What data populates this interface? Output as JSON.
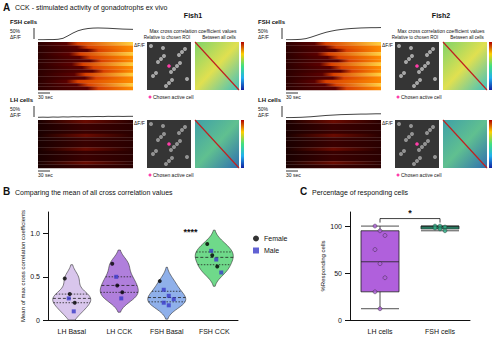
{
  "panel_a": {
    "panel_label": "A",
    "title": "CCK - stimulated activity of gonadotrophs ex vivo",
    "cell_types": [
      "FSH cells",
      "LH cells"
    ],
    "scale_label": [
      "50%",
      "ΔF/F"
    ],
    "colorbar_label": "ΔF/F",
    "time_label": "30 sec",
    "matrix_title": "Max cross correlation coefficient values",
    "matrix_subtitles": [
      "Relative to chosen ROI",
      "Between all cells"
    ],
    "marker_label": "Chosen active cell",
    "trace_ylim": [
      0,
      1
    ],
    "fish": [
      {
        "name": "Fish1",
        "mean_traces": [
          [
            0.02,
            0.02,
            0.03,
            0.03,
            0.05,
            0.12,
            0.3,
            0.5,
            0.66,
            0.76,
            0.82,
            0.85,
            0.86,
            0.85,
            0.84,
            0.82,
            0.8,
            0.78,
            0.77,
            0.76
          ],
          [
            0.05,
            0.06,
            0.05,
            0.07,
            0.06,
            0.08,
            0.07,
            0.09,
            0.08,
            0.1,
            0.09,
            0.1,
            0.11,
            0.1,
            0.12,
            0.11,
            0.12,
            0.11,
            0.12,
            0.12
          ]
        ]
      },
      {
        "name": "Fish2",
        "mean_traces": [
          [
            0.02,
            0.02,
            0.03,
            0.05,
            0.1,
            0.2,
            0.32,
            0.44,
            0.55,
            0.63,
            0.7,
            0.75,
            0.79,
            0.82,
            0.84,
            0.86,
            0.87,
            0.88,
            0.88,
            0.89
          ],
          [
            0.03,
            0.03,
            0.04,
            0.05,
            0.07,
            0.09,
            0.12,
            0.15,
            0.18,
            0.2,
            0.22,
            0.24,
            0.25,
            0.26,
            0.27,
            0.28,
            0.28,
            0.29,
            0.3,
            0.3
          ]
        ]
      }
    ]
  },
  "chart_data": [
    {
      "type": "violin",
      "panel_label": "B",
      "title": "Comparing the mean of all cross correlation values",
      "ylabel": "Mean of max cross correlation coefficients",
      "categories": [
        "LH Basal",
        "LH CCK",
        "FSH Basal",
        "FSH CCK"
      ],
      "colors": [
        "#d9c6ec",
        "#b07fdc",
        "#8fb0ea",
        "#6fd98a"
      ],
      "series": [
        {
          "name": "Female",
          "color": "#000000",
          "marker": "circle",
          "values": [
            [
              0.48,
              0.3,
              0.2
            ],
            [
              0.65,
              0.4,
              0.32
            ],
            [
              0.45
            ],
            [
              0.88,
              0.75,
              0.62
            ]
          ]
        },
        {
          "name": "Male",
          "color": "#3a3ac8",
          "marker": "square",
          "values": [
            [
              0.25,
              0.1
            ],
            [
              0.5,
              0.25
            ],
            [
              0.35,
              0.28,
              0.24,
              0.2,
              0.17
            ],
            [
              0.8,
              0.7,
              0.55
            ]
          ]
        }
      ],
      "ylim": [
        0,
        1.25
      ],
      "yticks": [
        0,
        0.5,
        {
          "value": 1,
          "label": "1.0"
        }
      ],
      "grid": false,
      "legend": "right",
      "annotations": [
        {
          "text": "****",
          "between": [
            "FSH Basal",
            "FSH CCK"
          ],
          "y": 1.0
        }
      ]
    },
    {
      "type": "box",
      "panel_label": "C",
      "title": "Percentage of responding cells",
      "ylabel": "%Responding cells",
      "categories": [
        "LH cells",
        "FSH cells"
      ],
      "boxes": [
        [
          12,
          30,
          62,
          95,
          100
        ],
        [
          95,
          97,
          99,
          100,
          100
        ]
      ],
      "colors": [
        "#b060dc",
        "#2fb38a"
      ],
      "points": [
        [
          100,
          95,
          90,
          75,
          60,
          45,
          30,
          12
        ],
        [
          100,
          100,
          99,
          98,
          97,
          95
        ]
      ],
      "ylim": [
        0,
        115
      ],
      "yticks": [
        0,
        50,
        100
      ],
      "grid": false,
      "annotations": [
        {
          "text": "*",
          "between": [
            "LH cells",
            "FSH cells"
          ],
          "y": 108
        }
      ]
    }
  ]
}
